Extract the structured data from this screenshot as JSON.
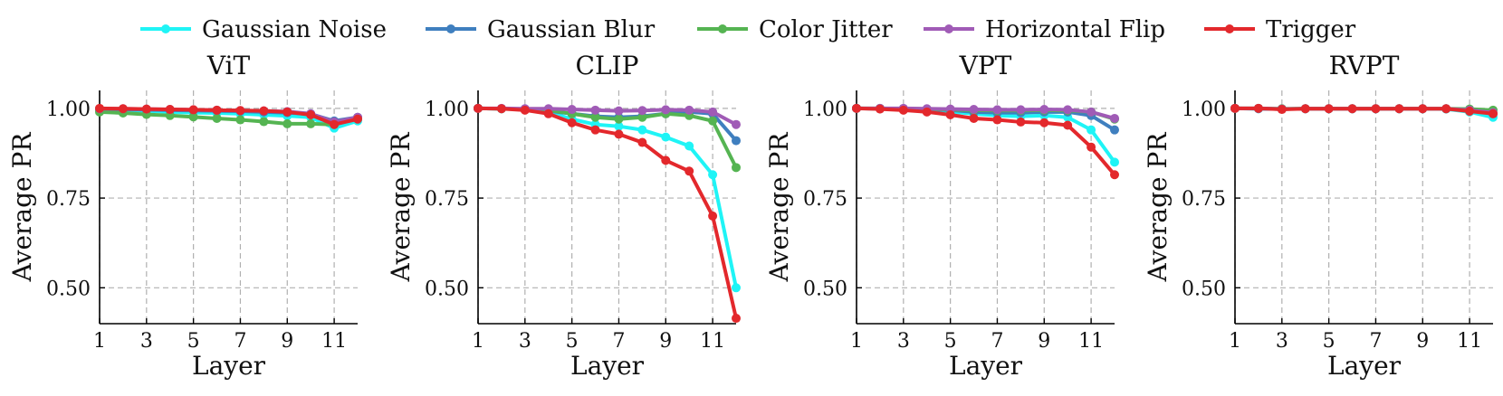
{
  "legend": [
    {
      "name": "Gaussian Noise",
      "color": "#1ff4f6"
    },
    {
      "name": "Gaussian Blur",
      "color": "#3f7fbf"
    },
    {
      "name": "Color Jitter",
      "color": "#55b452"
    },
    {
      "name": "Horizontal Flip",
      "color": "#a05bb6"
    },
    {
      "name": "Trigger",
      "color": "#e3282c"
    }
  ],
  "chart_data": [
    {
      "type": "line",
      "title": "ViT",
      "xlabel": "Layer",
      "ylabel": "Average PR",
      "x": [
        1,
        2,
        3,
        4,
        5,
        6,
        7,
        8,
        9,
        10,
        11,
        12
      ],
      "xticks": [
        "1",
        "3",
        "5",
        "7",
        "9",
        "11"
      ],
      "yticks": [
        "0.50",
        "0.75",
        "1.00"
      ],
      "xlim": [
        1,
        12
      ],
      "ylim": [
        0.4,
        1.05
      ],
      "grid": true,
      "series": [
        {
          "name": "Gaussian Noise",
          "values": [
            0.995,
            0.995,
            0.993,
            0.99,
            0.988,
            0.987,
            0.985,
            0.982,
            0.979,
            0.975,
            0.945,
            0.965
          ]
        },
        {
          "name": "Gaussian Blur",
          "values": [
            0.998,
            0.997,
            0.996,
            0.995,
            0.994,
            0.993,
            0.992,
            0.99,
            0.988,
            0.984,
            0.965,
            0.975
          ]
        },
        {
          "name": "Color Jitter",
          "values": [
            0.99,
            0.987,
            0.983,
            0.98,
            0.976,
            0.972,
            0.968,
            0.963,
            0.957,
            0.957,
            0.955,
            0.972
          ]
        },
        {
          "name": "Horizontal Flip",
          "values": [
            0.999,
            0.999,
            0.998,
            0.997,
            0.996,
            0.995,
            0.994,
            0.993,
            0.991,
            0.985,
            0.962,
            0.975
          ]
        },
        {
          "name": "Trigger",
          "values": [
            1.0,
            0.999,
            0.998,
            0.997,
            0.996,
            0.995,
            0.994,
            0.993,
            0.99,
            0.982,
            0.955,
            0.97
          ]
        }
      ]
    },
    {
      "type": "line",
      "title": "CLIP",
      "xlabel": "Layer",
      "ylabel": "Average PR",
      "x": [
        1,
        2,
        3,
        4,
        5,
        6,
        7,
        8,
        9,
        10,
        11,
        12
      ],
      "xticks": [
        "1",
        "3",
        "5",
        "7",
        "9",
        "11"
      ],
      "yticks": [
        "0.50",
        "0.75",
        "1.00"
      ],
      "xlim": [
        1,
        12
      ],
      "ylim": [
        0.4,
        1.05
      ],
      "grid": true,
      "series": [
        {
          "name": "Gaussian Noise",
          "values": [
            1.0,
            0.999,
            0.997,
            0.99,
            0.97,
            0.955,
            0.95,
            0.94,
            0.92,
            0.895,
            0.815,
            0.5
          ]
        },
        {
          "name": "Gaussian Blur",
          "values": [
            1.0,
            0.999,
            0.998,
            0.993,
            0.985,
            0.978,
            0.975,
            0.978,
            0.985,
            0.99,
            0.985,
            0.91
          ]
        },
        {
          "name": "Color Jitter",
          "values": [
            1.0,
            0.999,
            0.998,
            0.995,
            0.985,
            0.975,
            0.97,
            0.975,
            0.985,
            0.98,
            0.965,
            0.835
          ]
        },
        {
          "name": "Horizontal Flip",
          "values": [
            1.0,
            1.0,
            0.999,
            0.999,
            0.997,
            0.995,
            0.993,
            0.994,
            0.996,
            0.995,
            0.99,
            0.955
          ]
        },
        {
          "name": "Trigger",
          "values": [
            1.0,
            0.999,
            0.995,
            0.985,
            0.96,
            0.94,
            0.928,
            0.905,
            0.855,
            0.825,
            0.7,
            0.415
          ]
        }
      ]
    },
    {
      "type": "line",
      "title": "VPT",
      "xlabel": "Layer",
      "ylabel": "Average PR",
      "x": [
        1,
        2,
        3,
        4,
        5,
        6,
        7,
        8,
        9,
        10,
        11,
        12
      ],
      "xticks": [
        "1",
        "3",
        "5",
        "7",
        "9",
        "11"
      ],
      "yticks": [
        "0.50",
        "0.75",
        "1.00"
      ],
      "xlim": [
        1,
        12
      ],
      "ylim": [
        0.4,
        1.05
      ],
      "grid": true,
      "series": [
        {
          "name": "Gaussian Noise",
          "values": [
            1.0,
            0.999,
            0.998,
            0.995,
            0.99,
            0.985,
            0.98,
            0.978,
            0.98,
            0.975,
            0.94,
            0.85
          ]
        },
        {
          "name": "Gaussian Blur",
          "values": [
            1.0,
            0.999,
            0.998,
            0.997,
            0.995,
            0.99,
            0.988,
            0.988,
            0.99,
            0.99,
            0.98,
            0.94
          ]
        },
        {
          "name": "Color Jitter",
          "values": [
            1.0,
            1.0,
            0.999,
            0.998,
            0.996,
            0.995,
            0.994,
            0.994,
            0.995,
            0.994,
            0.99,
            0.97
          ]
        },
        {
          "name": "Horizontal Flip",
          "values": [
            1.0,
            1.0,
            1.0,
            0.999,
            0.998,
            0.997,
            0.996,
            0.996,
            0.997,
            0.996,
            0.99,
            0.972
          ]
        },
        {
          "name": "Trigger",
          "values": [
            1.0,
            0.998,
            0.995,
            0.99,
            0.982,
            0.972,
            0.968,
            0.962,
            0.96,
            0.953,
            0.892,
            0.815
          ]
        }
      ]
    },
    {
      "type": "line",
      "title": "RVPT",
      "xlabel": "Layer",
      "ylabel": "Average PR",
      "x": [
        1,
        2,
        3,
        4,
        5,
        6,
        7,
        8,
        9,
        10,
        11,
        12
      ],
      "xticks": [
        "1",
        "3",
        "5",
        "7",
        "9",
        "11"
      ],
      "yticks": [
        "0.50",
        "0.75",
        "1.00"
      ],
      "xlim": [
        1,
        12
      ],
      "ylim": [
        0.4,
        1.05
      ],
      "grid": true,
      "series": [
        {
          "name": "Gaussian Noise",
          "values": [
            1.0,
            0.999,
            0.998,
            0.999,
            0.999,
            0.999,
            0.999,
            0.999,
            0.999,
            0.998,
            0.99,
            0.975
          ]
        },
        {
          "name": "Gaussian Blur",
          "values": [
            1.0,
            0.999,
            0.998,
            0.999,
            0.999,
            0.999,
            0.999,
            0.999,
            0.999,
            0.999,
            0.995,
            0.985
          ]
        },
        {
          "name": "Color Jitter",
          "values": [
            1.0,
            1.0,
            0.999,
            0.999,
            0.999,
            0.999,
            0.999,
            0.999,
            0.999,
            0.999,
            0.998,
            0.995
          ]
        },
        {
          "name": "Horizontal Flip",
          "values": [
            1.0,
            1.0,
            0.998,
            0.999,
            0.999,
            0.999,
            0.999,
            0.999,
            0.999,
            0.999,
            0.995,
            0.988
          ]
        },
        {
          "name": "Trigger",
          "values": [
            1.0,
            1.0,
            0.997,
            0.999,
            0.999,
            0.999,
            0.999,
            0.999,
            0.999,
            0.999,
            0.992,
            0.985
          ]
        }
      ]
    }
  ]
}
